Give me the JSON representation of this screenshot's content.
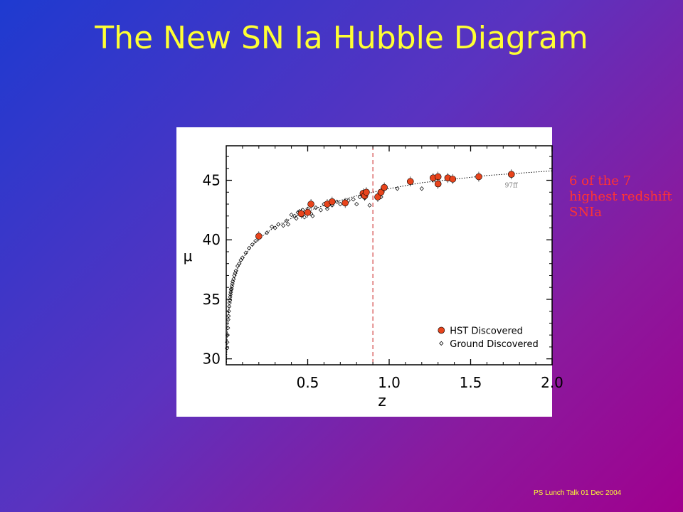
{
  "slide": {
    "title": "The New SN Ia Hubble Diagram",
    "note": "6 of the 7 highest redshift SNIa",
    "footer": "PS Lunch Talk 01 Dec 2004"
  },
  "chart_data": {
    "type": "scatter",
    "xlabel": "z",
    "ylabel": "μ",
    "xlim": [
      0,
      2.0
    ],
    "ylim": [
      29.5,
      47.9
    ],
    "xticks": [
      0.5,
      1.0,
      1.5,
      2.0
    ],
    "xtick_labels": [
      "0.5",
      "1.0",
      "1.5",
      "2.0"
    ],
    "yticks": [
      30,
      35,
      40,
      45
    ],
    "ytick_labels": [
      "30",
      "35",
      "40",
      "45"
    ],
    "grid": false,
    "legend_position": "bottom-right",
    "vline": {
      "x": 0.9,
      "color": "#cc2222",
      "style": "dashed"
    },
    "model_curve": {
      "style": "dotted",
      "points": [
        [
          0.002,
          29.7
        ],
        [
          0.005,
          31.6
        ],
        [
          0.01,
          33.2
        ],
        [
          0.02,
          34.7
        ],
        [
          0.04,
          36.3
        ],
        [
          0.07,
          37.6
        ],
        [
          0.1,
          38.4
        ],
        [
          0.15,
          39.4
        ],
        [
          0.2,
          40.1
        ],
        [
          0.3,
          41.1
        ],
        [
          0.4,
          41.8
        ],
        [
          0.5,
          42.4
        ],
        [
          0.6,
          42.9
        ],
        [
          0.7,
          43.3
        ],
        [
          0.8,
          43.7
        ],
        [
          0.9,
          44.0
        ],
        [
          1.0,
          44.3
        ],
        [
          1.2,
          44.8
        ],
        [
          1.4,
          45.1
        ],
        [
          1.6,
          45.4
        ],
        [
          1.8,
          45.6
        ],
        [
          2.0,
          45.8
        ]
      ]
    },
    "annotations": [
      {
        "text": "97ff",
        "x": 1.71,
        "y": 44.4
      }
    ],
    "series": [
      {
        "name": "HST Discovered",
        "marker": "filled-circle",
        "color": "#e8441c",
        "points": [
          [
            0.2,
            40.3
          ],
          [
            0.46,
            42.2
          ],
          [
            0.5,
            42.3
          ],
          [
            0.52,
            43.0
          ],
          [
            0.62,
            43.0
          ],
          [
            0.65,
            43.2
          ],
          [
            0.73,
            43.1
          ],
          [
            0.84,
            43.9
          ],
          [
            0.85,
            43.7
          ],
          [
            0.86,
            44.0
          ],
          [
            0.93,
            43.6
          ],
          [
            0.95,
            44.0
          ],
          [
            0.97,
            44.4
          ],
          [
            1.13,
            44.9
          ],
          [
            1.27,
            45.2
          ],
          [
            1.3,
            45.3
          ],
          [
            1.3,
            44.7
          ],
          [
            1.36,
            45.2
          ],
          [
            1.39,
            45.1
          ],
          [
            1.55,
            45.3
          ],
          [
            1.75,
            45.5
          ]
        ]
      },
      {
        "name": "Ground Discovered",
        "marker": "open-diamond",
        "color": "#000000",
        "points": [
          [
            0.005,
            30.9
          ],
          [
            0.006,
            31.4
          ],
          [
            0.008,
            32.0
          ],
          [
            0.01,
            32.6
          ],
          [
            0.012,
            33.3
          ],
          [
            0.014,
            33.6
          ],
          [
            0.016,
            34.0
          ],
          [
            0.018,
            34.4
          ],
          [
            0.02,
            34.7
          ],
          [
            0.022,
            34.9
          ],
          [
            0.024,
            35.2
          ],
          [
            0.026,
            35.4
          ],
          [
            0.028,
            35.6
          ],
          [
            0.03,
            35.8
          ],
          [
            0.032,
            35.9
          ],
          [
            0.035,
            36.1
          ],
          [
            0.038,
            36.3
          ],
          [
            0.04,
            36.5
          ],
          [
            0.045,
            36.7
          ],
          [
            0.05,
            37.0
          ],
          [
            0.055,
            37.2
          ],
          [
            0.06,
            37.4
          ],
          [
            0.07,
            37.8
          ],
          [
            0.08,
            38.0
          ],
          [
            0.09,
            38.3
          ],
          [
            0.1,
            38.5
          ],
          [
            0.12,
            38.9
          ],
          [
            0.14,
            39.3
          ],
          [
            0.16,
            39.6
          ],
          [
            0.18,
            39.9
          ],
          [
            0.25,
            40.6
          ],
          [
            0.28,
            41.1
          ],
          [
            0.3,
            41.0
          ],
          [
            0.32,
            41.3
          ],
          [
            0.35,
            41.2
          ],
          [
            0.37,
            41.6
          ],
          [
            0.38,
            41.3
          ],
          [
            0.4,
            42.1
          ],
          [
            0.42,
            42.0
          ],
          [
            0.43,
            41.8
          ],
          [
            0.44,
            42.3
          ],
          [
            0.45,
            42.4
          ],
          [
            0.47,
            42.5
          ],
          [
            0.48,
            41.9
          ],
          [
            0.5,
            42.6
          ],
          [
            0.52,
            42.2
          ],
          [
            0.53,
            42.0
          ],
          [
            0.55,
            42.7
          ],
          [
            0.58,
            42.5
          ],
          [
            0.6,
            43.0
          ],
          [
            0.62,
            42.6
          ],
          [
            0.65,
            42.9
          ],
          [
            0.68,
            43.2
          ],
          [
            0.7,
            43.0
          ],
          [
            0.75,
            43.3
          ],
          [
            0.78,
            43.4
          ],
          [
            0.8,
            43.0
          ],
          [
            0.82,
            43.6
          ],
          [
            0.85,
            43.5
          ],
          [
            0.86,
            43.8
          ],
          [
            0.88,
            42.9
          ],
          [
            0.95,
            43.6
          ],
          [
            1.05,
            44.3
          ],
          [
            1.2,
            44.3
          ]
        ]
      }
    ]
  }
}
